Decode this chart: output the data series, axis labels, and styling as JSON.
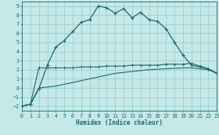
{
  "xlabel": "Humidex (Indice chaleur)",
  "xlim": [
    0,
    23
  ],
  "ylim": [
    -2.5,
    9.5
  ],
  "yticks": [
    -2,
    -1,
    0,
    1,
    2,
    3,
    4,
    5,
    6,
    7,
    8,
    9
  ],
  "xticks": [
    0,
    1,
    2,
    3,
    4,
    5,
    6,
    7,
    8,
    9,
    10,
    11,
    12,
    13,
    14,
    15,
    16,
    17,
    18,
    19,
    20,
    21,
    22,
    23
  ],
  "bg_color": "#c5e8e8",
  "grid_color": "#9ecece",
  "line_color": "#1a6b6b",
  "c1_x": [
    0,
    1,
    2,
    3,
    4,
    5,
    6,
    7,
    8,
    9,
    10,
    11,
    12,
    13,
    14,
    15,
    16,
    17,
    18,
    19,
    20,
    21,
    22,
    23
  ],
  "c1_y": [
    -2.0,
    -1.8,
    -0.1,
    2.5,
    4.5,
    5.2,
    6.2,
    7.2,
    7.5,
    9.0,
    8.8,
    8.2,
    8.7,
    7.7,
    8.3,
    7.5,
    7.3,
    6.5,
    5.0,
    3.6,
    2.5,
    2.3,
    2.1,
    1.6
  ],
  "c2_x": [
    0,
    1,
    2,
    3,
    4,
    5,
    6,
    7,
    8,
    9,
    10,
    11,
    12,
    13,
    14,
    15,
    16,
    17,
    18,
    19,
    20,
    21,
    22,
    23
  ],
  "c2_y": [
    -2.0,
    -1.8,
    2.2,
    2.2,
    2.2,
    2.2,
    2.2,
    2.3,
    2.3,
    2.3,
    2.4,
    2.4,
    2.4,
    2.5,
    2.5,
    2.5,
    2.5,
    2.6,
    2.6,
    2.6,
    2.7,
    2.4,
    2.1,
    1.6
  ],
  "c3_x": [
    0,
    1,
    2,
    3,
    4,
    5,
    6,
    7,
    8,
    9,
    10,
    11,
    12,
    13,
    14,
    15,
    16,
    17,
    18,
    19,
    20,
    21,
    22,
    23
  ],
  "c3_y": [
    -2.0,
    -1.8,
    0.0,
    0.1,
    0.2,
    0.4,
    0.6,
    0.8,
    1.0,
    1.2,
    1.4,
    1.6,
    1.7,
    1.8,
    1.9,
    2.0,
    2.05,
    2.1,
    2.15,
    2.2,
    2.2,
    2.1,
    2.0,
    1.6
  ]
}
